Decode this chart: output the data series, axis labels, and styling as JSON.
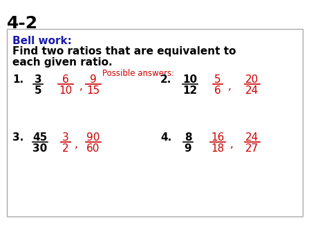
{
  "title": "4-2",
  "title_color": "#000000",
  "title_fontsize": 18,
  "bell_work_label": "Bell work:",
  "bell_work_color": "#1a1aaa",
  "instruction": "Find two ratios that are equivalent to\neach given ratio.",
  "instruction_color": "#000000",
  "possible_answers_label": "Possible answers:",
  "possible_answers_color": "#CC0000",
  "background_color": "#ffffff",
  "black": "#000000",
  "red": "#CC0000",
  "problems": [
    {
      "number": "1.",
      "given_num": "3",
      "given_den": "5",
      "ans1_num": "6",
      "ans1_den": "10",
      "ans2_num": "9",
      "ans2_den": "15"
    },
    {
      "number": "2.",
      "given_num": "10",
      "given_den": "12",
      "ans1_num": "5",
      "ans1_den": "6",
      "ans2_num": "20",
      "ans2_den": "24"
    },
    {
      "number": "3.",
      "given_num": "45",
      "given_den": "30",
      "ans1_num": "3",
      "ans1_den": "2",
      "ans2_num": "90",
      "ans2_den": "60"
    },
    {
      "number": "4.",
      "given_num": "8",
      "given_den": "9",
      "ans1_num": "16",
      "ans1_den": "18",
      "ans2_num": "24",
      "ans2_den": "27"
    }
  ]
}
